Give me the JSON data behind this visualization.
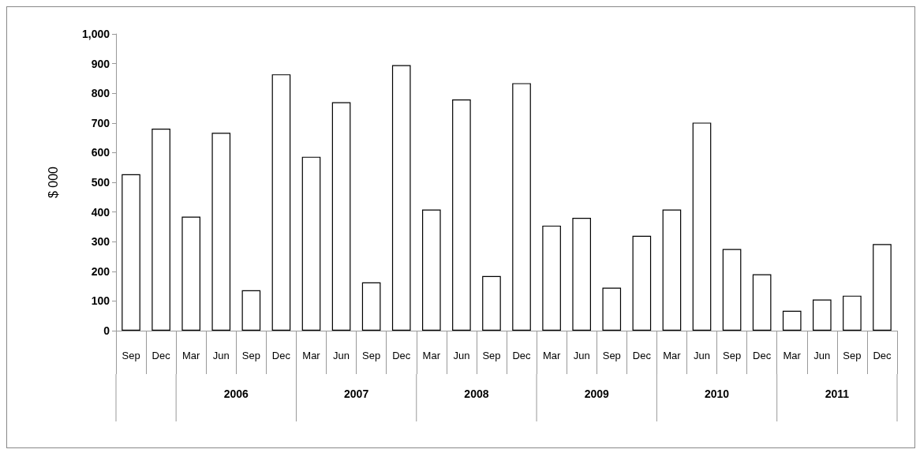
{
  "chart_data": {
    "type": "bar",
    "ylabel": "$ 000",
    "categories": [
      "Sep",
      "Dec",
      "Mar",
      "Jun",
      "Sep",
      "Dec",
      "Mar",
      "Jun",
      "Sep",
      "Dec",
      "Mar",
      "Jun",
      "Sep",
      "Dec",
      "Mar",
      "Jun",
      "Sep",
      "Dec",
      "Mar",
      "Jun",
      "Sep",
      "Dec",
      "Mar",
      "Jun",
      "Sep",
      "Dec"
    ],
    "values": [
      527,
      681,
      384,
      667,
      136,
      864,
      586,
      770,
      163,
      895,
      408,
      779,
      184,
      834,
      354,
      380,
      145,
      320,
      408,
      701,
      275,
      190,
      67,
      105,
      118,
      292
    ],
    "color": "#ffffff",
    "ylim": [
      0,
      1000
    ],
    "yticks": [
      0,
      100,
      200,
      300,
      400,
      500,
      600,
      700,
      800,
      900,
      {
        "value": 1000,
        "label": "1,000"
      }
    ],
    "annotations": [
      "2006",
      "2007",
      "2008",
      "2009",
      "2010",
      "2011"
    ],
    "grid": false
  }
}
